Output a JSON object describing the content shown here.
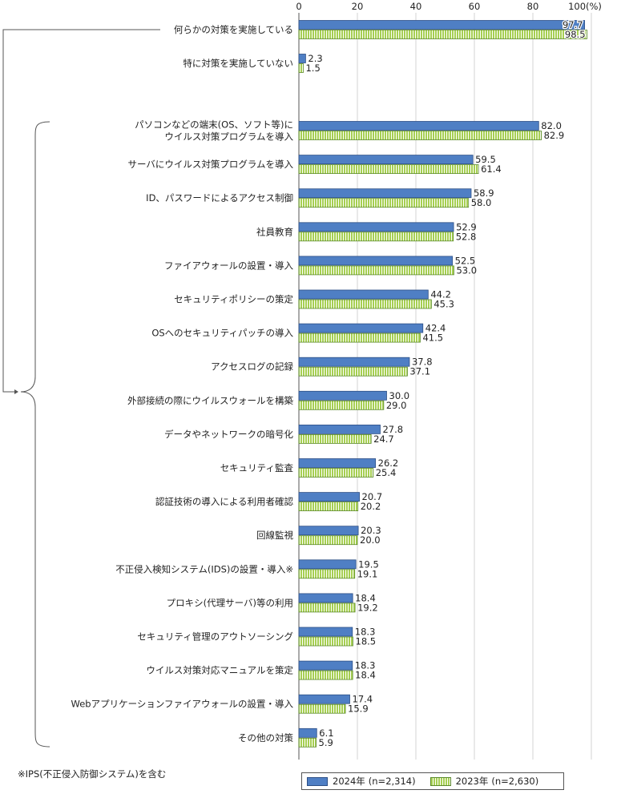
{
  "chart_data": {
    "type": "bar",
    "orientation": "horizontal",
    "x_ticks": [
      "0",
      "20",
      "40",
      "60",
      "80",
      "100(%)"
    ],
    "xlim": [
      0,
      100
    ],
    "categories": [
      [
        "何らかの対策を実施している"
      ],
      [
        "特に対策を実施していない"
      ],
      [
        "パソコンなどの端末(OS、ソフト等)に",
        "ウイルス対策プログラムを導入"
      ],
      [
        "サーバにウイルス対策プログラムを導入"
      ],
      [
        "ID、パスワードによるアクセス制御"
      ],
      [
        "社員教育"
      ],
      [
        "ファイアウォールの設置・導入"
      ],
      [
        "セキュリティポリシーの策定"
      ],
      [
        "OSへのセキュリティパッチの導入"
      ],
      [
        "アクセスログの記録"
      ],
      [
        "外部接続の際にウイルスウォールを構築"
      ],
      [
        "データやネットワークの暗号化"
      ],
      [
        "セキュリティ監査"
      ],
      [
        "認証技術の導入による利用者確認"
      ],
      [
        "回線監視"
      ],
      [
        "不正侵入検知システム(IDS)の設置・導入※"
      ],
      [
        "プロキシ(代理サーバ)等の利用"
      ],
      [
        "セキュリティ管理のアウトソーシング"
      ],
      [
        "ウイルス対策対応マニュアルを策定"
      ],
      [
        "Webアプリケーションファイアウォールの設置・導入"
      ],
      [
        "その他の対策"
      ]
    ],
    "series": [
      {
        "name": "2024年 (n=2,314)",
        "color": "#4f7fc4",
        "values": [
          97.7,
          2.3,
          82.0,
          59.5,
          58.9,
          52.9,
          52.5,
          44.2,
          42.4,
          37.8,
          30.0,
          27.8,
          26.2,
          20.7,
          20.3,
          19.5,
          18.4,
          18.3,
          18.3,
          17.4,
          6.1
        ],
        "labels": [
          "97.7",
          "2.3",
          "82.0",
          "59.5",
          "58.9",
          "52.9",
          "52.5",
          "44.2",
          "42.4",
          "37.8",
          "30.0",
          "27.8",
          "26.2",
          "20.7",
          "20.3",
          "19.5",
          "18.4",
          "18.3",
          "18.3",
          "17.4",
          "6.1"
        ]
      },
      {
        "name": "2023年 (n=2,630)",
        "color": "#a6cf52",
        "values": [
          98.5,
          1.5,
          82.9,
          61.4,
          58.0,
          52.8,
          53.0,
          45.3,
          41.5,
          37.1,
          29.0,
          24.7,
          25.4,
          20.2,
          20.0,
          19.1,
          19.2,
          18.5,
          18.4,
          15.9,
          5.9
        ],
        "labels": [
          "98.5",
          "1.5",
          "82.9",
          "61.4",
          "58.0",
          "52.8",
          "53.0",
          "45.3",
          "41.5",
          "37.1",
          "29.0",
          "24.7",
          "25.4",
          "20.2",
          "20.0",
          "19.1",
          "19.2",
          "18.5",
          "18.4",
          "15.9",
          "5.9"
        ]
      }
    ],
    "legend": [
      {
        "year": "2024年",
        "n": "(n=2,314)"
      },
      {
        "year": "2023年",
        "n": "(n=2,630)"
      }
    ],
    "legend_position": "bottom-right",
    "grid": true,
    "note": "※IPS(不正侵入防御システム)を含む"
  }
}
